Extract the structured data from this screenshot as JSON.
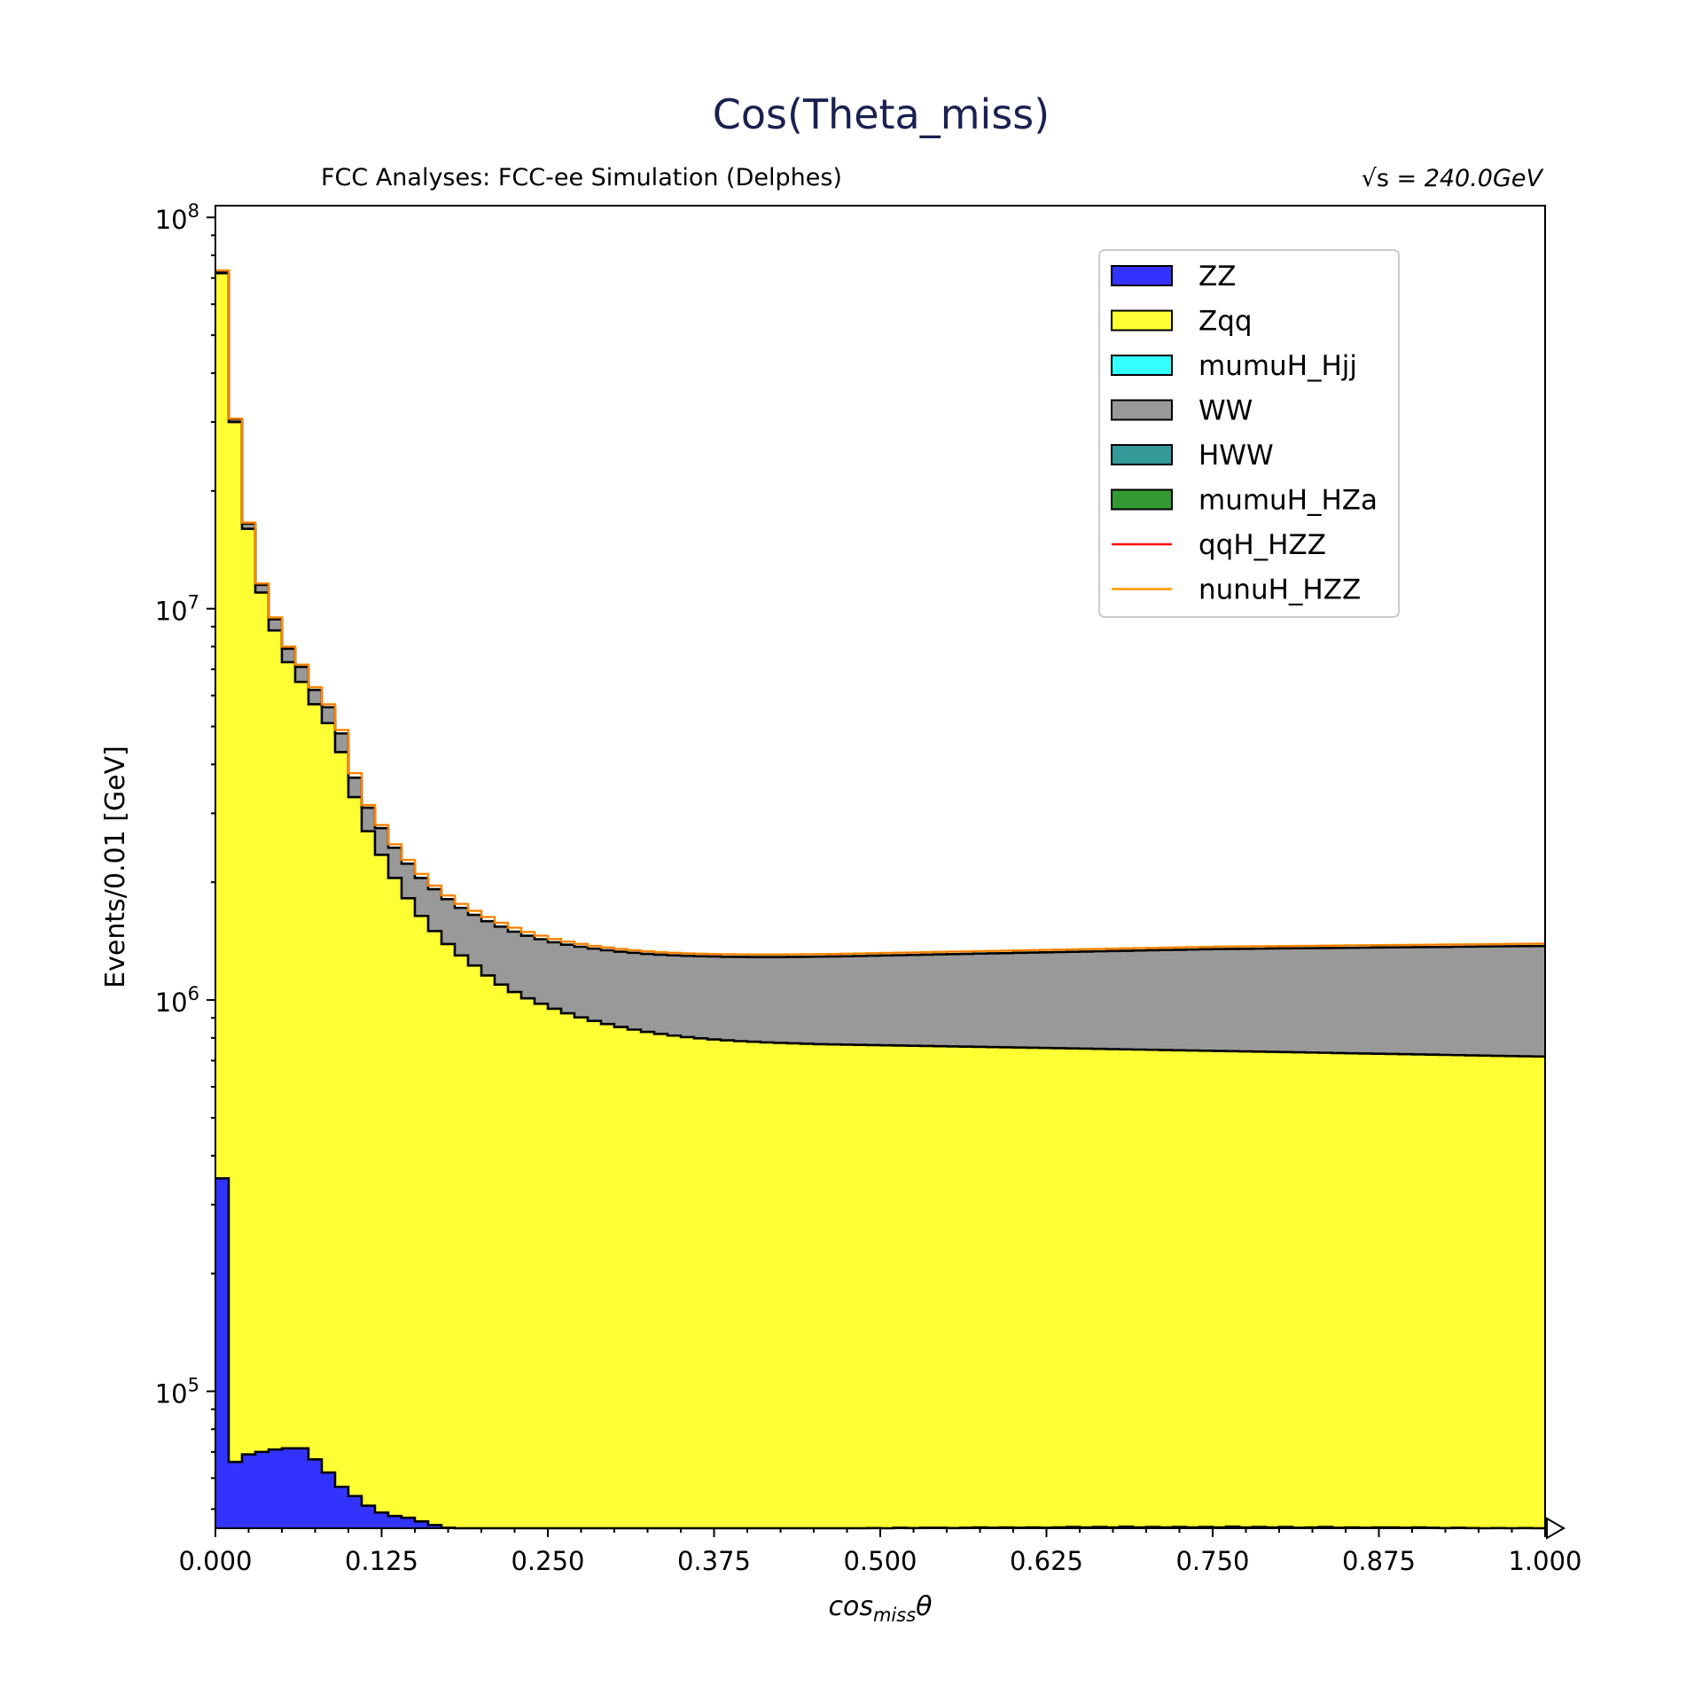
{
  "chart_data": {
    "type": "bar",
    "stacked": true,
    "histogram": true,
    "title": "Cos(Theta_miss)",
    "subtitle_left": "FCC Analyses: FCC-ee Simulation (Delphes)",
    "subtitle_right_prefix": "√s = ",
    "subtitle_right_value": "240.0GeV",
    "xlabel_main": "cos",
    "xlabel_sub": "miss",
    "xlabel_tail": "θ",
    "ylabel": "Events/0.01 [GeV]",
    "xlim": [
      0,
      1
    ],
    "ylim_log10": [
      4.65,
      8.03
    ],
    "yscale": "log",
    "bin_width": 0.01,
    "grid": false,
    "legend_position": "top-right",
    "x_ticks": [
      "0.000",
      "0.125",
      "0.250",
      "0.375",
      "0.500",
      "0.625",
      "0.750",
      "0.875",
      "1.000"
    ],
    "y_tick_base": "10",
    "y_tick_exponents": [
      "5",
      "6",
      "7",
      "8"
    ],
    "legend": [
      {
        "label": "ZZ",
        "kind": "patch",
        "color": "#3333ff"
      },
      {
        "label": "Zqq",
        "kind": "patch",
        "color": "#ffff33"
      },
      {
        "label": "mumuH_Hjj",
        "kind": "patch",
        "color": "#33ffff"
      },
      {
        "label": "WW",
        "kind": "patch",
        "color": "#999999"
      },
      {
        "label": "HWW",
        "kind": "patch",
        "color": "#339999"
      },
      {
        "label": "mumuH_HZa",
        "kind": "patch",
        "color": "#339933"
      },
      {
        "label": "qqH_HZZ",
        "kind": "line",
        "color": "#ff0000"
      },
      {
        "label": "nunuH_HZZ",
        "kind": "line",
        "color": "#ff9900"
      }
    ],
    "series_cumulative_tops": {
      "ZZ": [
        350000,
        66000,
        69000,
        70000,
        71000,
        71500,
        71500,
        67000,
        62000,
        57000,
        54000,
        51000,
        49000,
        48000,
        47500,
        46500,
        45500,
        44800,
        44400,
        44400,
        44400,
        44300,
        44200,
        44300,
        44200,
        44300,
        44200,
        44300,
        44100,
        44300,
        44200,
        44200,
        44300,
        44400,
        44300,
        44400,
        44300,
        44400,
        44400,
        44500,
        44300,
        44400,
        44600,
        44400,
        44500,
        44600,
        44500,
        44500,
        44600,
        44700,
        44600,
        44800,
        44700,
        44800,
        44800,
        44700,
        44800,
        44900,
        44800,
        44900,
        44800,
        44900,
        44800,
        44900,
        45000,
        44900,
        45000,
        44900,
        45100,
        44900,
        45000,
        44900,
        45000,
        44900,
        45000,
        44900,
        45100,
        44900,
        45000,
        44900,
        45000,
        44800,
        44900,
        45000,
        44800,
        44900,
        44800,
        44900,
        44900,
        44800,
        44900,
        44800,
        44700,
        44800,
        44700,
        44600,
        44700,
        44600,
        44700,
        44600
      ],
      "Zqq": [
        72000000,
        30000000,
        16000000,
        11000000,
        8800000,
        7300000,
        6500000,
        5700000,
        5100000,
        4300000,
        3300000,
        2700000,
        2350000,
        2050000,
        1820000,
        1640000,
        1500000,
        1390000,
        1300000,
        1225000,
        1155000,
        1095000,
        1048000,
        1010000,
        978000,
        950000,
        925000,
        903000,
        884000,
        868000,
        853000,
        840000,
        829000,
        819000,
        811000,
        804000,
        798000,
        793000,
        789000,
        785000,
        782000,
        779000,
        777000,
        775000,
        773000,
        771000,
        770000,
        769000,
        768000,
        767000,
        766000,
        765000,
        764000,
        763000,
        762000,
        761000,
        760000,
        759000,
        758000,
        757000,
        756000,
        755000,
        754000,
        753000,
        752000,
        751000,
        750000,
        749000,
        748000,
        747000,
        746000,
        745000,
        744000,
        743000,
        742000,
        741000,
        740000,
        739000,
        738000,
        737000,
        736000,
        735000,
        734000,
        733000,
        732000,
        731000,
        730000,
        729000,
        728000,
        727000,
        726000,
        725000,
        724000,
        723000,
        722000,
        721000,
        720000,
        719000,
        718000,
        717000
      ],
      "WW": [
        73000000,
        30500000,
        16500000,
        11500000,
        9400000,
        7900000,
        7100000,
        6200000,
        5600000,
        4800000,
        3700000,
        3100000,
        2750000,
        2450000,
        2230000,
        2050000,
        1920000,
        1810000,
        1720000,
        1650000,
        1590000,
        1540000,
        1495000,
        1460000,
        1430000,
        1405000,
        1385000,
        1368000,
        1353000,
        1340000,
        1329000,
        1320000,
        1312000,
        1306000,
        1301000,
        1297000,
        1294000,
        1292000,
        1290000,
        1289000,
        1288000,
        1288000,
        1288000,
        1289000,
        1290000,
        1291000,
        1292000,
        1294000,
        1296000,
        1298000,
        1300000,
        1302000,
        1304000,
        1306000,
        1308000,
        1310000,
        1312000,
        1314000,
        1316000,
        1318000,
        1320000,
        1322000,
        1324000,
        1326000,
        1328000,
        1330000,
        1332000,
        1334000,
        1336000,
        1338000,
        1340000,
        1342000,
        1344000,
        1346000,
        1348000,
        1350000,
        1351000,
        1352000,
        1353000,
        1354000,
        1355000,
        1356000,
        1357000,
        1358000,
        1359000,
        1360000,
        1361000,
        1362000,
        1363000,
        1364000,
        1365000,
        1366000,
        1367000,
        1368000,
        1369000,
        1370000,
        1371000,
        1372000,
        1373000,
        1374000
      ],
      "nunuH_HZZ": [
        73200000,
        30600000,
        16600000,
        11600000,
        9500000,
        8000000,
        7200000,
        6300000,
        5700000,
        4900000,
        3800000,
        3150000,
        2800000,
        2500000,
        2280000,
        2100000,
        1960000,
        1850000,
        1760000,
        1690000,
        1630000,
        1575000,
        1530000,
        1492000,
        1460000,
        1432000,
        1410000,
        1391000,
        1375000,
        1362000,
        1350000,
        1340000,
        1332000,
        1325000,
        1320000,
        1316000,
        1313000,
        1311000,
        1309000,
        1308000,
        1307000,
        1307000,
        1307000,
        1308000,
        1309000,
        1310000,
        1311000,
        1313000,
        1315000,
        1317000,
        1319000,
        1321000,
        1323000,
        1325000,
        1327000,
        1329000,
        1331000,
        1333000,
        1335000,
        1337000,
        1339000,
        1341000,
        1343000,
        1345000,
        1347000,
        1349000,
        1351000,
        1353000,
        1355000,
        1357000,
        1359000,
        1361000,
        1363000,
        1365000,
        1367000,
        1369000,
        1370000,
        1371000,
        1372000,
        1373000,
        1374000,
        1375000,
        1376000,
        1377000,
        1378000,
        1379000,
        1380000,
        1381000,
        1382000,
        1383000,
        1384000,
        1385000,
        1386000,
        1387000,
        1388000,
        1389000,
        1390000,
        1391000,
        1392000,
        1393000
      ]
    }
  }
}
